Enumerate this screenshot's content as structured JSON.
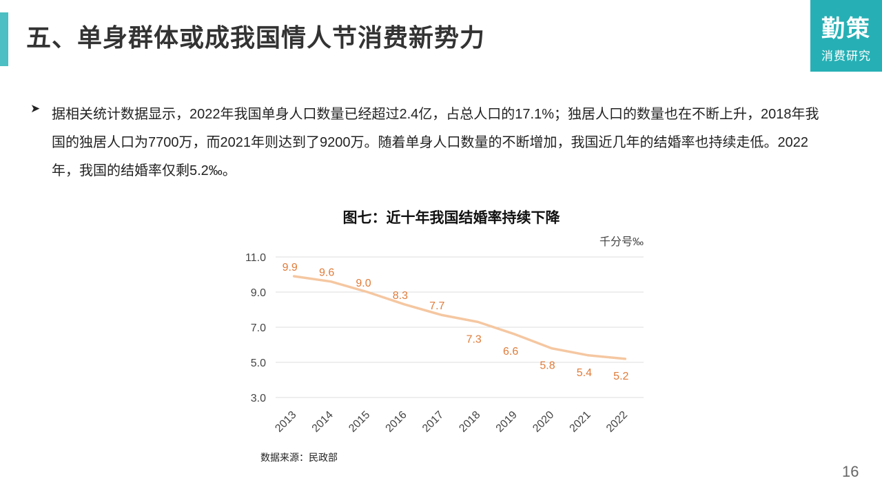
{
  "header": {
    "title": "五、单身群体或成我国情人节消费新势力"
  },
  "brand": {
    "name": "勤策",
    "subtitle": "消费研究"
  },
  "content": {
    "bullet_icon": "arrow-bullet-icon",
    "bullet_text": "据相关统计数据显示，2022年我国单身人口数量已经超过2.4亿，占总人口的17.1%；独居人口的数量也在不断上升，2018年我国的独居人口为7700万，而2021年则达到了9200万。随着单身人口数量的不断增加，我国近几年的结婚率也持续走低。2022年，我国的结婚率仅剩5.2‰。"
  },
  "chart_data": {
    "type": "line",
    "title": "图七：近十年我国结婚率持续下降",
    "unit_label": "千分号‰",
    "x": [
      "2013",
      "2014",
      "2015",
      "2016",
      "2017",
      "2018",
      "2019",
      "2020",
      "2021",
      "2022"
    ],
    "series": [
      {
        "values": [
          9.9,
          9.6,
          9.0,
          8.3,
          7.7,
          7.3,
          6.6,
          5.8,
          5.4,
          5.2
        ]
      }
    ],
    "data_labels": [
      "9.9",
      "9.6",
      "9.0",
      "8.3",
      "7.7",
      "7.3",
      "6.6",
      "5.8",
      "5.4",
      "5.2"
    ],
    "yticks": [
      "11.0",
      "9.0",
      "7.0",
      "5.0",
      "3.0"
    ],
    "ylim": [
      3.0,
      11.0
    ],
    "grid": true,
    "legend": "none",
    "line_color": "#f5c7a1",
    "label_color": "#e07b39",
    "source": "数据来源：民政部"
  },
  "page": {
    "number": "16"
  }
}
